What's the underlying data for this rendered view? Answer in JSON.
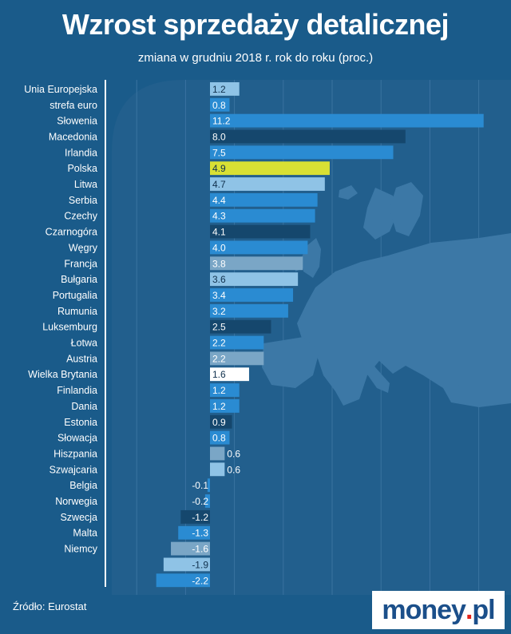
{
  "header": {
    "title": "Wzrost sprzedaży detalicznej",
    "subtitle": "zmiana w grudniu 2018 r.  rok do roku (proc.)"
  },
  "footer": {
    "source": "Źródło: Eurostat",
    "logo_main": "money",
    "logo_dot": ".",
    "logo_tld": "pl"
  },
  "colors": {
    "background": "#1a5b8a",
    "map": "#3c78a6",
    "highlight": "#d8e034",
    "white_bar": "#ffffff"
  },
  "chart_data": {
    "type": "bar",
    "orientation": "horizontal",
    "title": "Wzrost sprzedaży detalicznej",
    "subtitle": "zmiana w grudniu 2018 r.  rok do roku (proc.)",
    "categories": [
      "Unia Europejska",
      "strefa euro",
      "Słowenia",
      "Macedonia",
      "Irlandia",
      "Polska",
      "Litwa",
      "Serbia",
      "Czechy",
      "Czarnogóra",
      "Węgry",
      "Francja",
      "Bułgaria",
      "Portugalia",
      "Rumunia",
      "Luksemburg",
      "Łotwa",
      "Austria",
      "Wielka Brytania",
      "Finlandia",
      "Dania",
      "Estonia",
      "Słowacja",
      "Hiszpania",
      "Szwajcaria",
      "Belgia",
      "Norwegia",
      "Szwecja",
      "Malta",
      "Niemcy",
      "",
      ""
    ],
    "values": [
      1.2,
      0.8,
      11.2,
      8.0,
      7.5,
      4.9,
      4.7,
      4.4,
      4.3,
      4.1,
      4.0,
      3.8,
      3.6,
      3.4,
      3.2,
      2.5,
      2.2,
      2.2,
      1.6,
      1.2,
      1.2,
      0.9,
      0.8,
      0.6,
      0.6,
      -0.1,
      -0.2,
      -1.2,
      -1.3,
      -1.6,
      -1.9,
      -2.2
    ],
    "value_labels": [
      "1.2",
      "0.8",
      "11.2",
      "8.0",
      "7.5",
      "4.9",
      "4.7",
      "4.4",
      "4.3",
      "4.1",
      "4.0",
      "3.8",
      "3.6",
      "3.4",
      "3.2",
      "2.5",
      "2.2",
      "2.2",
      "1.6",
      "1.2",
      "1.2",
      "0.9",
      "0.8",
      "0.6",
      "0.6",
      "-0.1",
      "-0.2",
      "-1.2",
      "-1.3",
      "-1.6",
      "-1.9",
      "-2.2"
    ],
    "bar_colors": [
      "#8fc3e6",
      "#2a8bd2",
      "#2a8bd2",
      "#15476d",
      "#2a8bd2",
      "#d8e034",
      "#8fc3e6",
      "#2a8bd2",
      "#2a8bd2",
      "#15476d",
      "#2a8bd2",
      "#7aa6c6",
      "#8fc3e6",
      "#2a8bd2",
      "#2a8bd2",
      "#15476d",
      "#2a8bd2",
      "#7aa6c6",
      "#ffffff",
      "#2a8bd2",
      "#2a8bd2",
      "#15476d",
      "#2a8bd2",
      "#7aa6c6",
      "#8fc3e6",
      "#2a8bd2",
      "#2a8bd2",
      "#15476d",
      "#2a8bd2",
      "#7aa6c6",
      "#8fc3e6",
      "#2a8bd2"
    ],
    "xlim": [
      -3,
      12
    ],
    "grid": true,
    "xlabel": "",
    "ylabel": ""
  }
}
